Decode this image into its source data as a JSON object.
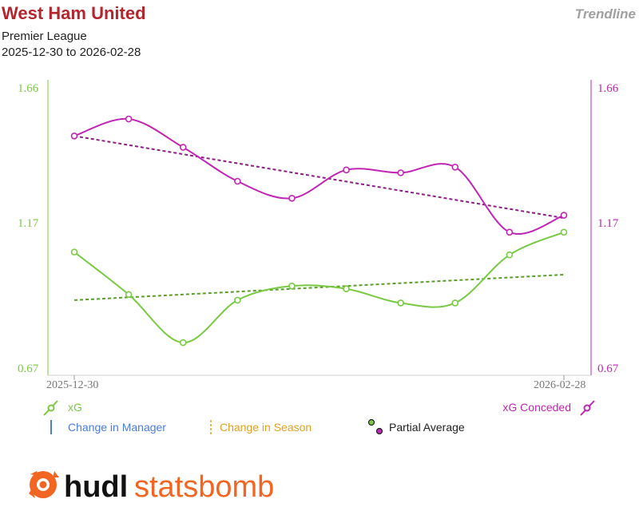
{
  "header": {
    "title": "West Ham United",
    "competition": "Premier League",
    "date_range": "2025-12-30 to 2026-02-28",
    "chart_kind": "Trendline"
  },
  "colors": {
    "xg": "#7ac943",
    "xg_trend": "#5a9e2a",
    "xg_conceded": "#c026b3",
    "xg_conceded_trend": "#8e1d86",
    "title": "#b3262e",
    "manager": "#4a7ddb",
    "season": "#e0a020",
    "logo_orange": "#f26522"
  },
  "legend": {
    "xg": "xG",
    "xg_conceded": "xG Conceded",
    "change_manager": "Change in Manager",
    "change_season": "Change in Season",
    "partial_average": "Partial Average"
  },
  "logo": {
    "part1": "hudl",
    "part2": "statsbomb"
  },
  "chart_data": {
    "type": "line",
    "x_labels": [
      "2025-12-30",
      "2026-02-28"
    ],
    "ylim": [
      0.67,
      1.66
    ],
    "y_ticks": [
      "1.66",
      "1.17",
      "0.67"
    ],
    "points_count": 10,
    "series": [
      {
        "name": "xG",
        "axis": "left",
        "values": [
          1.08,
          0.93,
          0.76,
          0.91,
          0.96,
          0.95,
          0.9,
          0.9,
          1.07,
          1.15
        ],
        "trend": [
          0.91,
          1.0
        ]
      },
      {
        "name": "xG Conceded",
        "axis": "right",
        "values": [
          1.49,
          1.55,
          1.45,
          1.33,
          1.27,
          1.37,
          1.36,
          1.38,
          1.15,
          1.21
        ],
        "trend": [
          1.49,
          1.2
        ]
      }
    ]
  }
}
